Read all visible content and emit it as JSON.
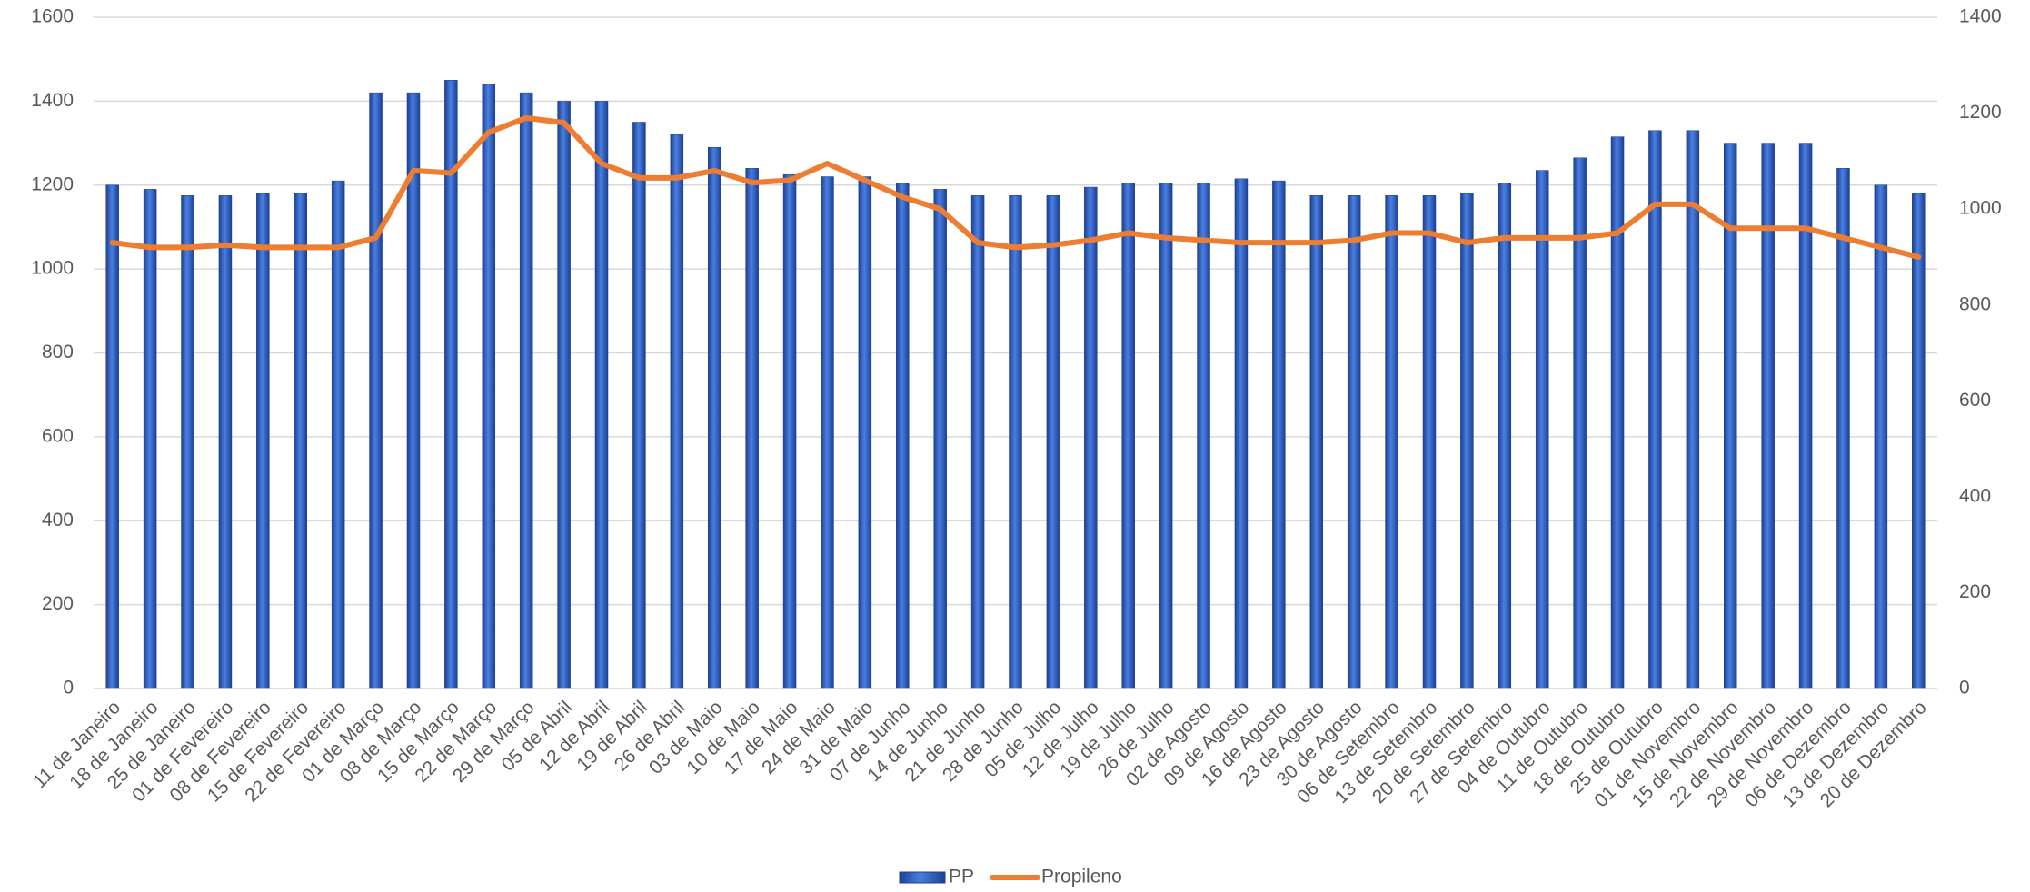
{
  "chart_data": {
    "type": "bar-line",
    "categories": [
      "11 de Janeiro",
      "18 de Janeiro",
      "25 de Janeiro",
      "01 de Fevereiro",
      "08 de Fevereiro",
      "15 de Fevereiro",
      "22 de Fevereiro",
      "01 de Março",
      "08 de Março",
      "15 de Março",
      "22 de Março",
      "29 de Março",
      "05 de Abril",
      "12 de Abril",
      "19 de Abril",
      "26 de Abril",
      "03 de Maio",
      "10 de Maio",
      "17 de Maio",
      "24 de Maio",
      "31 de Maio",
      "07 de Junho",
      "14 de Junho",
      "21 de Junho",
      "28 de Junho",
      "05 de Julho",
      "12 de Julho",
      "19 de Julho",
      "26 de Julho",
      "02 de Agosto",
      "09 de Agosto",
      "16 de Agosto",
      "23 de Agosto",
      "30 de Agosto",
      "06 de Setembro",
      "13 de Setembro",
      "20 de Setembro",
      "27 de Setembro",
      "04 de Outubro",
      "11 de Outubro",
      "18 de Outubro",
      "25 de Outubro",
      "01 de Novembro",
      "15 de Novembro",
      "22 de Novembro",
      "29 de Novembro",
      "06 de Dezembro",
      "13 de Dezembro",
      "20 de Dezembro"
    ],
    "series": [
      {
        "name": "PP",
        "type": "bar",
        "color": "#2f5fc4",
        "axis": "y",
        "values": [
          1200,
          1190,
          1175,
          1175,
          1180,
          1180,
          1210,
          1420,
          1420,
          1450,
          1440,
          1420,
          1400,
          1400,
          1350,
          1320,
          1290,
          1240,
          1225,
          1220,
          1220,
          1205,
          1190,
          1175,
          1175,
          1175,
          1195,
          1205,
          1205,
          1205,
          1215,
          1210,
          1175,
          1175,
          1175,
          1175,
          1180,
          1205,
          1235,
          1265,
          1315,
          1330,
          1330,
          1300,
          1300,
          1300,
          1240,
          1200,
          1180
        ]
      },
      {
        "name": "Propileno",
        "type": "line",
        "color": "#ed7d31",
        "axis": "y2",
        "values": [
          930,
          920,
          920,
          925,
          920,
          920,
          920,
          940,
          1080,
          1075,
          1160,
          1190,
          1180,
          1095,
          1065,
          1065,
          1080,
          1055,
          1060,
          1095,
          1060,
          1025,
          1000,
          930,
          920,
          925,
          935,
          950,
          940,
          935,
          930,
          930,
          930,
          935,
          950,
          950,
          930,
          940,
          940,
          940,
          950,
          1010,
          1010,
          960,
          960,
          960,
          940,
          920,
          900
        ]
      }
    ],
    "ylim": [
      0,
      1600
    ],
    "yticks": [
      0,
      200,
      400,
      600,
      800,
      1000,
      1200,
      1400,
      1600
    ],
    "y2lim": [
      0,
      1400
    ],
    "y2ticks": [
      0,
      200,
      400,
      600,
      800,
      1000,
      1200,
      1400
    ],
    "grid": true,
    "legend": "bottom"
  }
}
